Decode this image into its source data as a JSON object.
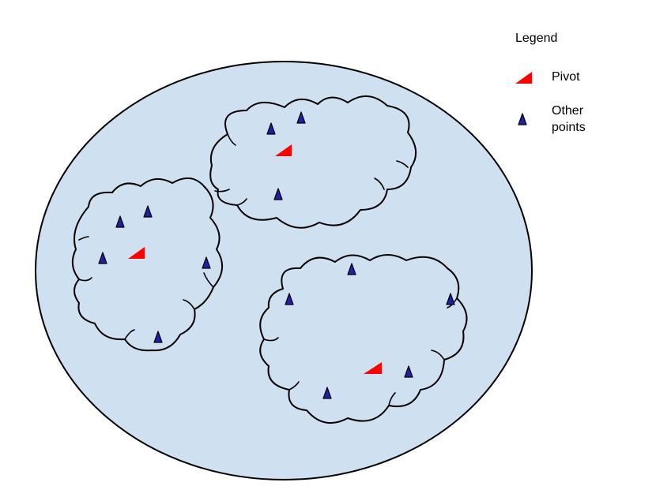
{
  "legend": {
    "title": "Legend",
    "pivot_label": "Pivot",
    "other_label_line1": "Other",
    "other_label_line2": "points"
  },
  "colors": {
    "background_region": "#cfe0f1",
    "pivot": "#ff0000",
    "other_points": "#1f1fa8",
    "outline": "#000000"
  },
  "icons": {
    "pivot": "red-right-triangle-icon",
    "other_point": "blue-triangle-icon"
  },
  "clusters": [
    {
      "name": "upper-right-cluster",
      "pivot_count": 1,
      "other_point_count": 3
    },
    {
      "name": "left-cluster",
      "pivot_count": 1,
      "other_point_count": 5
    },
    {
      "name": "lower-right-cluster",
      "pivot_count": 1,
      "other_point_count": 5
    }
  ]
}
